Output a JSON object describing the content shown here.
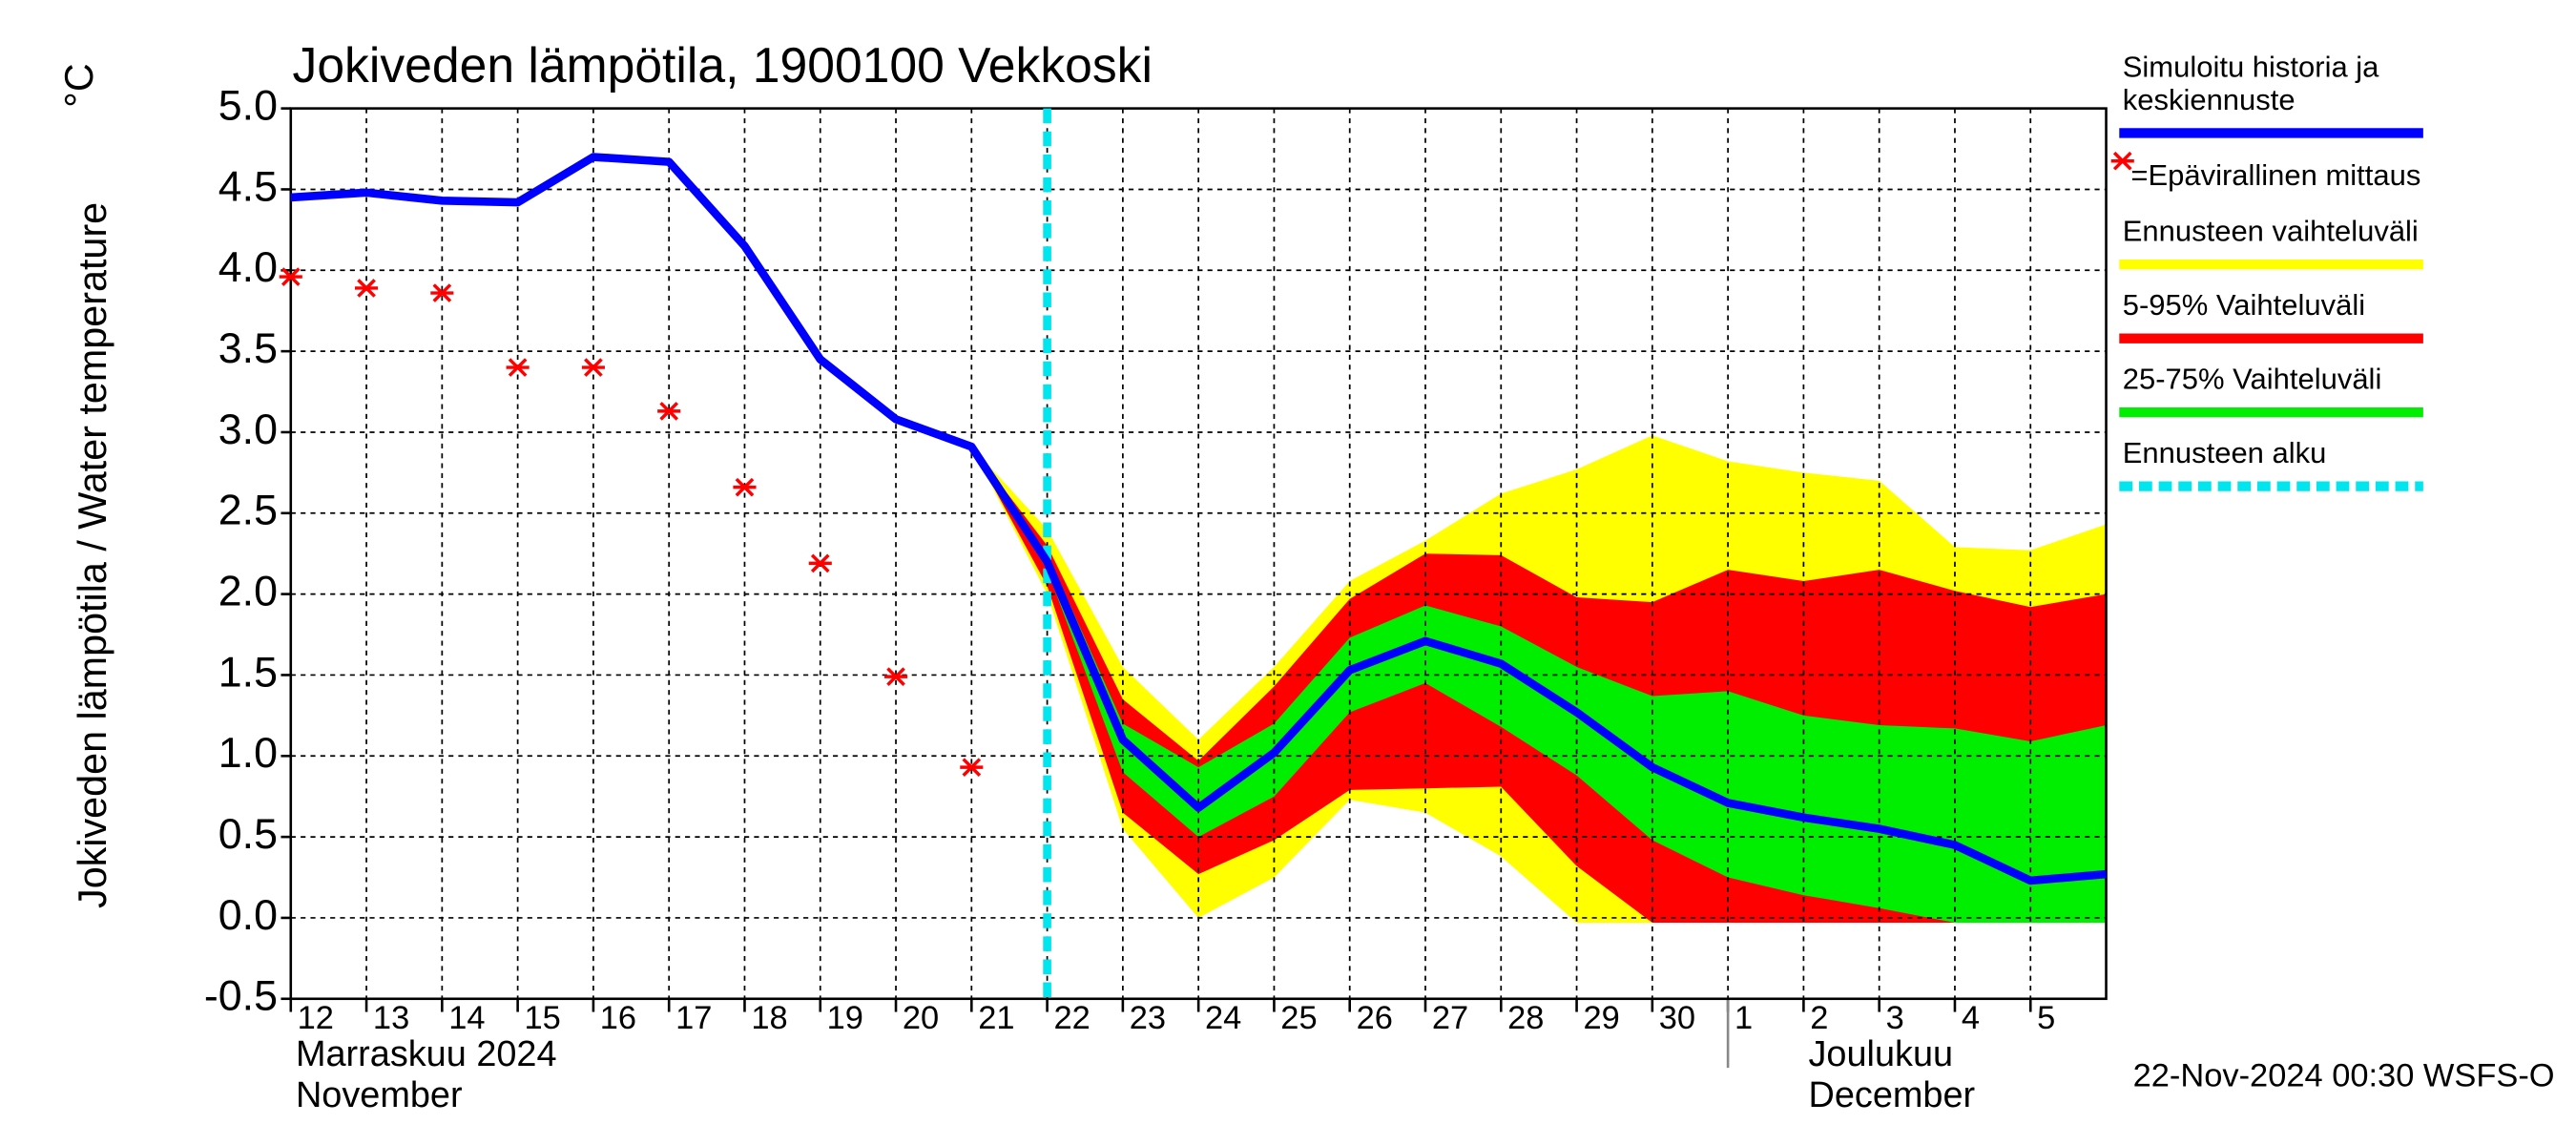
{
  "chart_data": {
    "type": "line",
    "title": "Jokiveden lämpötila, 1900100 Vekkoski",
    "y_label": "Jokiveden lämpötila / Water temperature",
    "y_unit": "°C",
    "xlim": [
      "2024-11-12",
      "2024-12-06"
    ],
    "ylim": [
      -0.5,
      5.0
    ],
    "yticks": [
      {
        "value": -0.5,
        "label": "-0.5"
      },
      {
        "value": 0,
        "label": "0.0"
      },
      {
        "value": 0.5,
        "label": "0.5"
      },
      {
        "value": 1,
        "label": "1.0"
      },
      {
        "value": 1.5,
        "label": "1.5"
      },
      {
        "value": 2,
        "label": "2.0"
      },
      {
        "value": 2.5,
        "label": "2.5"
      },
      {
        "value": 3,
        "label": "3.0"
      },
      {
        "value": 3.5,
        "label": "3.5"
      },
      {
        "value": 4,
        "label": "4.0"
      },
      {
        "value": 4.5,
        "label": "4.5"
      },
      {
        "value": 5,
        "label": "5.0"
      }
    ],
    "xticks": [
      {
        "value": "2024-11-12",
        "label": "12"
      },
      {
        "value": "2024-11-13",
        "label": "13"
      },
      {
        "value": "2024-11-14",
        "label": "14"
      },
      {
        "value": "2024-11-15",
        "label": "15"
      },
      {
        "value": "2024-11-16",
        "label": "16"
      },
      {
        "value": "2024-11-17",
        "label": "17"
      },
      {
        "value": "2024-11-18",
        "label": "18"
      },
      {
        "value": "2024-11-19",
        "label": "19"
      },
      {
        "value": "2024-11-20",
        "label": "20"
      },
      {
        "value": "2024-11-21",
        "label": "21"
      },
      {
        "value": "2024-11-22",
        "label": "22"
      },
      {
        "value": "2024-11-23",
        "label": "23"
      },
      {
        "value": "2024-11-24",
        "label": "24"
      },
      {
        "value": "2024-11-25",
        "label": "25"
      },
      {
        "value": "2024-11-26",
        "label": "26"
      },
      {
        "value": "2024-11-27",
        "label": "27"
      },
      {
        "value": "2024-11-28",
        "label": "28"
      },
      {
        "value": "2024-11-29",
        "label": "29"
      },
      {
        "value": "2024-11-30",
        "label": "30"
      },
      {
        "value": "2024-12-01",
        "label": "1"
      },
      {
        "value": "2024-12-02",
        "label": "2"
      },
      {
        "value": "2024-12-03",
        "label": "3"
      },
      {
        "value": "2024-12-04",
        "label": "4"
      },
      {
        "value": "2024-12-05",
        "label": "5"
      }
    ],
    "months": [
      {
        "value": "2024-11-12",
        "lines": [
          "Marraskuu 2024",
          "November"
        ]
      },
      {
        "value": "2024-12-01",
        "lines": [
          "Joulukuu",
          "December"
        ]
      }
    ],
    "grid": true,
    "forecast_start": "2024-11-22",
    "bands": [
      {
        "color": "#ffff00",
        "x": [
          "2024-11-21",
          "2024-11-22",
          "2024-11-23",
          "2024-11-24",
          "2024-11-25",
          "2024-11-26",
          "2024-11-27",
          "2024-11-28",
          "2024-11-29",
          "2024-11-30",
          "2024-12-01",
          "2024-12-02",
          "2024-12-03",
          "2024-12-04",
          "2024-12-05",
          "2024-12-06"
        ],
        "upper": [
          2.91,
          2.4,
          1.55,
          1.1,
          1.55,
          2.08,
          2.33,
          2.62,
          2.77,
          2.98,
          2.82,
          2.75,
          2.7,
          2.29,
          2.27,
          2.43
        ],
        "lower": [
          2.91,
          2.0,
          0.55,
          0.0,
          0.25,
          0.73,
          0.65,
          0.38,
          -0.03,
          -0.03,
          -0.03,
          -0.03,
          -0.03,
          -0.03,
          -0.03,
          -0.03
        ]
      },
      {
        "color": "#ff0000",
        "x": [
          "2024-11-21",
          "2024-11-22",
          "2024-11-23",
          "2024-11-24",
          "2024-11-25",
          "2024-11-26",
          "2024-11-27",
          "2024-11-28",
          "2024-11-29",
          "2024-11-30",
          "2024-12-01",
          "2024-12-02",
          "2024-12-03",
          "2024-12-04",
          "2024-12-05",
          "2024-12-06"
        ],
        "upper": [
          2.91,
          2.3,
          1.35,
          0.97,
          1.43,
          1.97,
          2.25,
          2.24,
          1.98,
          1.95,
          2.15,
          2.08,
          2.15,
          2.02,
          1.92,
          2.0
        ],
        "lower": [
          2.91,
          2.05,
          0.65,
          0.27,
          0.48,
          0.79,
          0.8,
          0.81,
          0.32,
          -0.03,
          -0.03,
          -0.03,
          -0.03,
          -0.03,
          -0.03,
          -0.03
        ]
      },
      {
        "color": "#00ee00",
        "x": [
          "2024-11-21",
          "2024-11-22",
          "2024-11-23",
          "2024-11-24",
          "2024-11-25",
          "2024-11-26",
          "2024-11-27",
          "2024-11-28",
          "2024-11-29",
          "2024-11-30",
          "2024-12-01",
          "2024-12-02",
          "2024-12-03",
          "2024-12-04",
          "2024-12-05",
          "2024-12-06"
        ],
        "upper": [
          2.91,
          2.25,
          1.2,
          0.93,
          1.2,
          1.73,
          1.93,
          1.8,
          1.55,
          1.37,
          1.4,
          1.25,
          1.19,
          1.17,
          1.09,
          1.19
        ],
        "lower": [
          2.91,
          2.15,
          0.9,
          0.5,
          0.75,
          1.27,
          1.45,
          1.18,
          0.88,
          0.48,
          0.25,
          0.14,
          0.06,
          -0.03,
          -0.03,
          -0.03
        ]
      }
    ],
    "series": [
      {
        "color": "#0000ff",
        "x": [
          "2024-11-12",
          "2024-11-13",
          "2024-11-14",
          "2024-11-15",
          "2024-11-16",
          "2024-11-17",
          "2024-11-18",
          "2024-11-19",
          "2024-11-20",
          "2024-11-21",
          "2024-11-22",
          "2024-11-23",
          "2024-11-24",
          "2024-11-25",
          "2024-11-26",
          "2024-11-27",
          "2024-11-28",
          "2024-11-29",
          "2024-11-30",
          "2024-12-01",
          "2024-12-02",
          "2024-12-03",
          "2024-12-04",
          "2024-12-05",
          "2024-12-06"
        ],
        "values": [
          4.45,
          4.48,
          4.43,
          4.42,
          4.7,
          4.67,
          4.15,
          3.45,
          3.08,
          2.91,
          2.2,
          1.1,
          0.68,
          1.02,
          1.53,
          1.71,
          1.57,
          1.27,
          0.93,
          0.71,
          0.62,
          0.55,
          0.45,
          0.23,
          0.27
        ]
      }
    ],
    "measurements": {
      "color": "#ff0000",
      "x": [
        "2024-11-12",
        "2024-11-13",
        "2024-11-14",
        "2024-11-15",
        "2024-11-16",
        "2024-11-17",
        "2024-11-18",
        "2024-11-19",
        "2024-11-20",
        "2024-11-21"
      ],
      "values": [
        3.96,
        3.89,
        3.86,
        3.4,
        3.4,
        3.13,
        2.66,
        2.19,
        1.49,
        0.93
      ]
    },
    "legend": [
      {
        "lines": [
          "Simuloitu historia ja",
          "keskiennuste"
        ],
        "color": "#0000ff",
        "style": "line"
      },
      {
        "lines": [
          "=Epävirallinen mittaus"
        ],
        "color": "#ff0000",
        "style": "star"
      },
      {
        "lines": [
          "Ennusteen vaihteluväli"
        ],
        "color": "#ffff00",
        "style": "line"
      },
      {
        "lines": [
          "5-95% Vaihteluväli"
        ],
        "color": "#ff0000",
        "style": "line"
      },
      {
        "lines": [
          "25-75% Vaihteluväli"
        ],
        "color": "#00ee00",
        "style": "line"
      },
      {
        "lines": [
          "Ennusteen alku"
        ],
        "color": "#00e5ee",
        "style": "dashed"
      }
    ],
    "footer": "22-Nov-2024 00:30 WSFS-O"
  }
}
